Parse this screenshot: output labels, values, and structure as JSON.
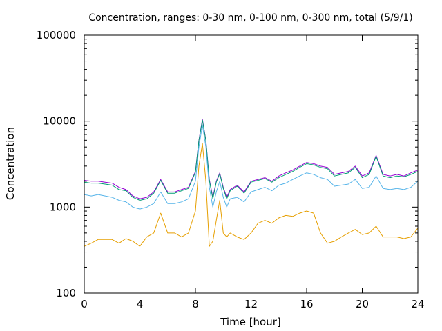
{
  "chart_data": {
    "type": "line",
    "title": "Concentration, ranges: 0-30 nm, 0-100 nm, 0-300 nm, total (5/9/1)",
    "xlabel": "Time [hour]",
    "ylabel": "Concentration",
    "xlim": [
      0,
      24
    ],
    "ylim": [
      100,
      100000
    ],
    "yscale": "log",
    "grid": false,
    "legend": "none",
    "x_ticks": [
      {
        "value": 0,
        "label": "0"
      },
      {
        "value": 4,
        "label": "4"
      },
      {
        "value": 8,
        "label": "8"
      },
      {
        "value": 12,
        "label": "12"
      },
      {
        "value": 16,
        "label": "16"
      },
      {
        "value": 20,
        "label": "20"
      },
      {
        "value": 24,
        "label": "24"
      }
    ],
    "y_ticks": [
      {
        "value": 100,
        "label": "100"
      },
      {
        "value": 1000,
        "label": "1000"
      },
      {
        "value": 10000,
        "label": "10000"
      },
      {
        "value": 100000,
        "label": "100000"
      }
    ],
    "x": [
      0,
      0.5,
      1,
      1.5,
      2,
      2.5,
      3,
      3.5,
      4,
      4.5,
      5,
      5.5,
      6,
      6.5,
      7,
      7.5,
      8,
      8.25,
      8.5,
      8.75,
      9,
      9.25,
      9.5,
      9.75,
      10,
      10.25,
      10.5,
      11,
      11.5,
      12,
      12.5,
      13,
      13.5,
      14,
      14.5,
      15,
      15.5,
      16,
      16.5,
      17,
      17.5,
      18,
      18.5,
      19,
      19.5,
      20,
      20.5,
      21,
      21.5,
      22,
      22.5,
      23,
      23.5,
      24
    ],
    "series": [
      {
        "color": "#9400d3",
        "values": [
          2050,
          2000,
          2000,
          1950,
          1900,
          1700,
          1600,
          1350,
          1250,
          1300,
          1500,
          2100,
          1500,
          1500,
          1600,
          1700,
          2600,
          6000,
          10500,
          6000,
          2100,
          1300,
          2000,
          2500,
          1700,
          1300,
          1600,
          1800,
          1500,
          2000,
          2100,
          2200,
          2000,
          2300,
          2500,
          2700,
          3000,
          3300,
          3200,
          3000,
          2900,
          2400,
          2500,
          2600,
          3000,
          2300,
          2500,
          4000,
          2400,
          2300,
          2400,
          2300,
          2500,
          2700
        ]
      },
      {
        "color": "#009e73",
        "values": [
          1950,
          1900,
          1900,
          1850,
          1800,
          1600,
          1550,
          1300,
          1200,
          1250,
          1450,
          2050,
          1450,
          1450,
          1550,
          1650,
          2550,
          5900,
          10300,
          5900,
          2050,
          1250,
          1950,
          2450,
          1650,
          1250,
          1550,
          1750,
          1450,
          1950,
          2050,
          2150,
          1950,
          2200,
          2400,
          2600,
          2900,
          3200,
          3100,
          2900,
          2800,
          2300,
          2400,
          2500,
          2900,
          2200,
          2400,
          3900,
          2300,
          2200,
          2300,
          2250,
          2400,
          2600
        ]
      },
      {
        "color": "#56b4e9",
        "values": [
          1400,
          1350,
          1400,
          1350,
          1300,
          1200,
          1150,
          1000,
          950,
          1000,
          1100,
          1500,
          1100,
          1100,
          1150,
          1250,
          2000,
          5000,
          9000,
          5000,
          1700,
          1000,
          1500,
          2000,
          1300,
          1000,
          1250,
          1300,
          1150,
          1500,
          1600,
          1700,
          1550,
          1800,
          1900,
          2100,
          2300,
          2500,
          2400,
          2200,
          2100,
          1750,
          1800,
          1850,
          2100,
          1650,
          1700,
          2300,
          1650,
          1600,
          1650,
          1600,
          1700,
          2000
        ]
      },
      {
        "color": "#e69f00",
        "values": [
          350,
          380,
          420,
          420,
          420,
          380,
          430,
          400,
          350,
          450,
          500,
          850,
          500,
          500,
          450,
          500,
          900,
          3000,
          5500,
          2000,
          350,
          400,
          700,
          1200,
          500,
          450,
          500,
          450,
          420,
          500,
          650,
          700,
          650,
          750,
          800,
          780,
          850,
          900,
          850,
          500,
          380,
          400,
          450,
          500,
          550,
          480,
          500,
          600,
          450,
          450,
          450,
          430,
          450,
          570
        ]
      }
    ]
  }
}
